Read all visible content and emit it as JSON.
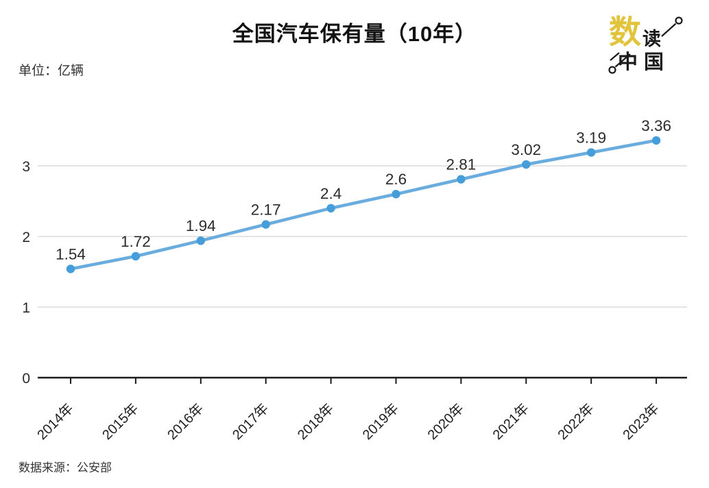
{
  "header": {
    "title": "全国汽车保有量（10年）",
    "unit_label": "单位：亿辆"
  },
  "logo": {
    "shu": "数",
    "du": "读",
    "zhong_guo": "中国",
    "gold_color": "#E2C33C",
    "ink_color": "#1b1b1b"
  },
  "footer": {
    "source_label": "数据来源：公安部"
  },
  "chart_data": {
    "type": "line",
    "title": "全国汽车保有量（10年）",
    "unit": "亿辆",
    "categories": [
      "2014年",
      "2015年",
      "2016年",
      "2017年",
      "2018年",
      "2019年",
      "2020年",
      "2021年",
      "2022年",
      "2023年"
    ],
    "series": [
      {
        "name": "全国汽车保有量",
        "values": [
          1.54,
          1.72,
          1.94,
          2.17,
          2.4,
          2.6,
          2.81,
          3.02,
          3.19,
          3.36
        ],
        "labels": [
          "1.54",
          "1.72",
          "1.94",
          "2.17",
          "2.4",
          "2.6",
          "2.81",
          "3.02",
          "3.19",
          "3.36"
        ]
      }
    ],
    "ylim": [
      0,
      3.5
    ],
    "yticks": [
      0,
      1,
      2,
      3
    ],
    "grid": true,
    "legend": "none",
    "x_label_rotation": -45,
    "line_color": "#6BACDF",
    "marker_color": "#459ED9",
    "grid_color": "#DCDCDC",
    "axis_color": "#1A1A1A",
    "label_color": "#2B2B2B",
    "source": "数据来源：公安部"
  }
}
